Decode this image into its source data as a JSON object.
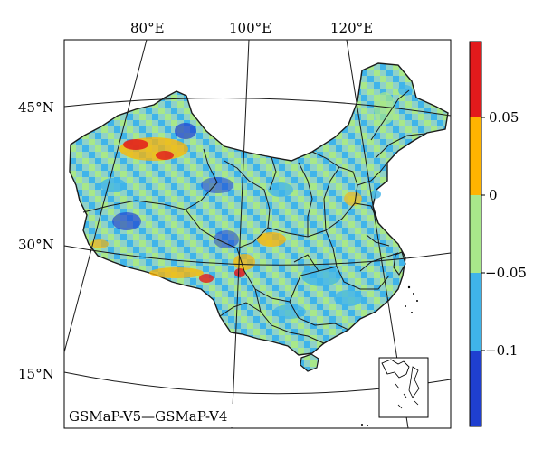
{
  "figure": {
    "caption": "GSMaP-V5—GSMaP-V4"
  },
  "axes": {
    "longitude_labels": [
      "80°E",
      "100°E",
      "120°E"
    ],
    "latitude_labels": [
      "45°N",
      "30°N",
      "15°N"
    ]
  },
  "colorbar": {
    "tick_labels": [
      "0.05",
      "0",
      "−0.05",
      "−0.1"
    ],
    "bins": [
      {
        "color": "#e31a1c",
        "range": "> 0.05"
      },
      {
        "color": "#ffb400",
        "range": "0 to 0.05"
      },
      {
        "color": "#a8e88a",
        "range": "−0.05 to 0"
      },
      {
        "color": "#3fb4ea",
        "range": "−0.1 to −0.05"
      },
      {
        "color": "#1f3fd0",
        "range": "< −0.1"
      }
    ]
  },
  "palette": {
    "land_base": "#8fd2c8",
    "green": "#a8e88a",
    "light_blue": "#3fb4ea",
    "blue": "#1f3fd0",
    "orange": "#ffb400",
    "red": "#e31a1c",
    "boundary": "#1a1a1a"
  }
}
